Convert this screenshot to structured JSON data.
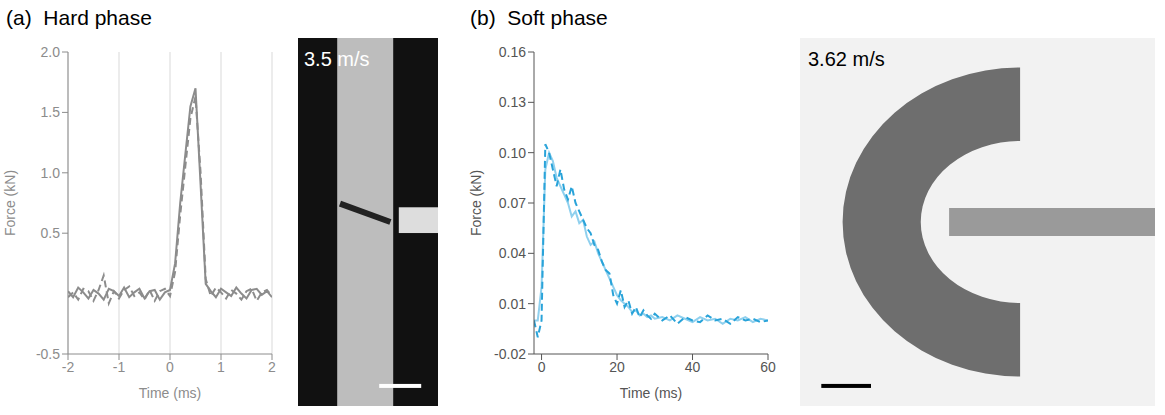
{
  "chart_data": [
    {
      "type": "line",
      "label": "(a)",
      "title": "Hard phase",
      "x_label": "Time (ms)",
      "y_label": "Force (kN)",
      "annotations": [
        "3.5 m/s"
      ],
      "xlim": [
        -2,
        2
      ],
      "xticks": [
        -2,
        -1,
        0,
        1,
        2
      ],
      "ylim": [
        -0.5,
        2
      ],
      "yticks": [
        -0.5,
        0.5,
        {
          "value": 1,
          "label": "1.0"
        },
        1.5,
        {
          "value": 2,
          "label": "2.0"
        }
      ],
      "grid": true,
      "x": [
        -2,
        -1.9,
        -1.8,
        -1.7,
        -1.6,
        -1.5,
        -1.4,
        -1.3,
        -1.2,
        -1.1,
        -1,
        -0.9,
        -0.8,
        -0.7,
        -0.6,
        -0.5,
        -0.4,
        -0.3,
        -0.2,
        -0.1,
        0,
        0.1,
        0.2,
        0.3,
        0.4,
        0.5,
        0.6,
        0.7,
        0.8,
        0.9,
        1,
        1.1,
        1.2,
        1.3,
        1.4,
        1.5,
        1.6,
        1.7,
        1.8,
        1.9,
        2
      ],
      "series": [
        {
          "color": "#8c8c8c",
          "line_style": "solid",
          "values": [
            0.02,
            -0.03,
            0.05,
            0.01,
            -0.04,
            0.03,
            0,
            -0.05,
            0.04,
            0.02,
            -0.02,
            0.05,
            -0.03,
            0.01,
            0.04,
            -0.04,
            0.02,
            0.03,
            -0.05,
            0.01,
            0.03,
            0.25,
            0.75,
            1.15,
            1.55,
            1.7,
            0.9,
            0.08,
            0.02,
            -0.03,
            0.04,
            0.01,
            -0.02,
            0.05,
            0,
            -0.04,
            0.03,
            0.04,
            -0.01,
            0.02,
            -0.03
          ]
        },
        {
          "color": "#8c8c8c",
          "line_style": "dashed",
          "values": [
            -0.03,
            0.01,
            -0.05,
            0.04,
            0.02,
            -0.06,
            0.03,
            0.15,
            -0.08,
            0.02,
            -0.04,
            0.03,
            0.06,
            -0.02,
            0.01,
            -0.05,
            0.03,
            -0.06,
            0.02,
            0.04,
            -0.02,
            0.18,
            0.65,
            1.05,
            1.45,
            1.63,
            1,
            0.12,
            -0.02,
            0.05,
            0.01,
            -0.04,
            0.03,
            0,
            -0.05,
            0.02,
            0.04,
            -0.06,
            0.01,
            0.03,
            -0.02
          ]
        }
      ]
    },
    {
      "type": "line",
      "label": "(b)",
      "title": "Soft phase",
      "x_label": "Time (ms)",
      "y_label": "Force (kN)",
      "annotations": [
        "3.62 m/s"
      ],
      "xlim": [
        -2,
        60
      ],
      "xticks": [
        0,
        20,
        40,
        60
      ],
      "ylim": [
        -0.02,
        0.16
      ],
      "yticks": [
        -0.02,
        0.01,
        0.04,
        0.07,
        {
          "value": 0.1,
          "label": "0.10"
        },
        0.13,
        0.16
      ],
      "grid": false,
      "x": [
        -2,
        -1,
        0,
        1,
        2,
        3,
        4,
        5,
        6,
        7,
        8,
        9,
        10,
        11,
        12,
        13,
        14,
        15,
        16,
        17,
        18,
        19,
        20,
        21,
        22,
        23,
        24,
        25,
        26,
        27,
        28,
        29,
        30,
        32,
        34,
        36,
        38,
        40,
        42,
        44,
        46,
        48,
        50,
        52,
        54,
        56,
        58,
        60
      ],
      "series": [
        {
          "color": "#8fd0ee",
          "line_style": "solid",
          "values": [
            0,
            0,
            0.02,
            0.09,
            0.1,
            0.095,
            0.085,
            0.08,
            0.075,
            0.07,
            0.062,
            0.065,
            0.058,
            0.06,
            0.05,
            0.045,
            0.047,
            0.04,
            0.035,
            0.03,
            0.025,
            0.02,
            0.015,
            0.012,
            0.01,
            0.008,
            0.005,
            0.006,
            0.003,
            0.004,
            0.002,
            0.003,
            0.001,
            0.002,
            0,
            0.003,
            0.001,
            -0.001,
            0.002,
            0,
            0.001,
            -0.002,
            0.001,
            0,
            0.002,
            -0.001,
            0.001,
            0
          ]
        },
        {
          "color": "#29a3d9",
          "line_style": "dashed",
          "values": [
            0,
            -0.01,
            0,
            0.105,
            0.1,
            0.09,
            0.08,
            0.09,
            0.078,
            0.072,
            0.08,
            0.07,
            0.065,
            0.06,
            0.055,
            0.052,
            0.045,
            0.042,
            0.035,
            0.03,
            0.028,
            0.015,
            0.01,
            0.018,
            0.008,
            0.012,
            0.004,
            0.008,
            0.002,
            0.006,
            0.003,
            0.001,
            0.004,
            0,
            0.003,
            -0.002,
            0.002,
            0,
            -0.001,
            0.003,
            0,
            0.001,
            -0.002,
            0.002,
            0,
            0.001,
            -0.001,
            0
          ]
        }
      ]
    }
  ]
}
